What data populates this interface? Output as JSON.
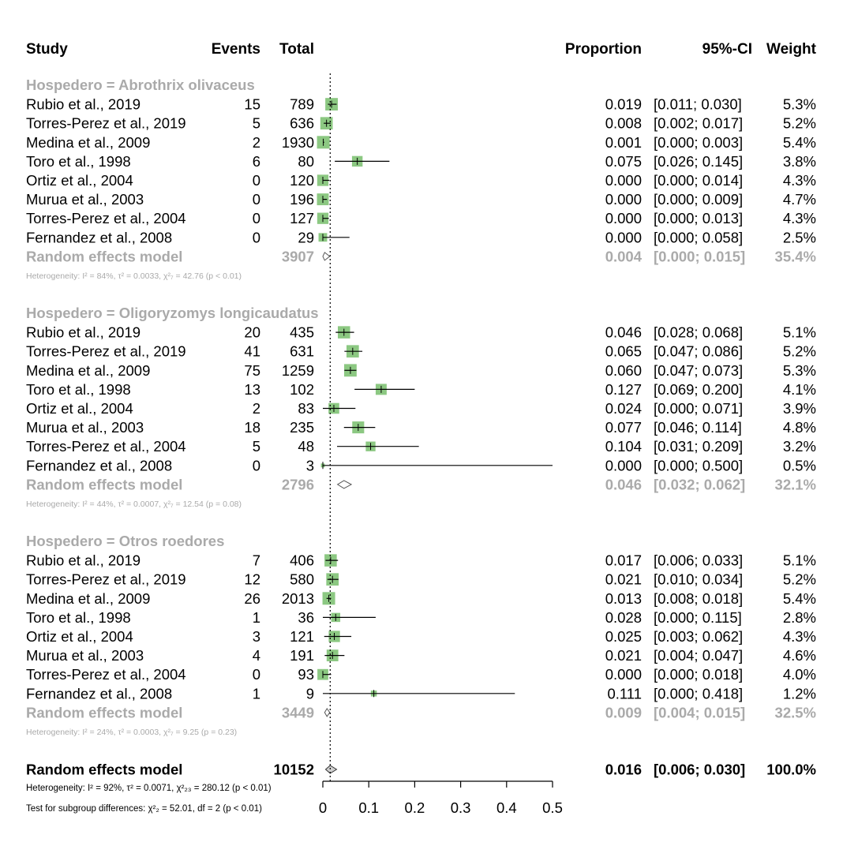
{
  "header": {
    "study": "Study",
    "events": "Events",
    "total": "Total",
    "proportion": "Proportion",
    "ci": "95%-CI",
    "weight": "Weight"
  },
  "chart_data": {
    "type": "forest",
    "xlim": [
      0,
      0.5
    ],
    "xticks": [
      "0",
      "0.1",
      "0.2",
      "0.3",
      "0.4",
      "0.5"
    ],
    "reference_line": 0.016,
    "colors": {
      "square": "#8cc882",
      "grey_text": "#aaaaaa",
      "diamond": "#888888"
    },
    "groups": [
      {
        "label": "Hospedero = Abrothrix olivaceus",
        "studies": [
          {
            "study": "Rubio et al., 2019",
            "events": "15",
            "total": "789",
            "est": 0.019,
            "lo": 0.011,
            "hi": 0.03,
            "prop": "0.019",
            "ci": "[0.011; 0.030]",
            "weight": "5.3%",
            "w": 5.3
          },
          {
            "study": "Torres-Perez et al., 2019",
            "events": "5",
            "total": "636",
            "est": 0.008,
            "lo": 0.002,
            "hi": 0.017,
            "prop": "0.008",
            "ci": "[0.002; 0.017]",
            "weight": "5.2%",
            "w": 5.2
          },
          {
            "study": "Medina et al., 2009",
            "events": "2",
            "total": "1930",
            "est": 0.001,
            "lo": 0.0,
            "hi": 0.003,
            "prop": "0.001",
            "ci": "[0.000; 0.003]",
            "weight": "5.4%",
            "w": 5.4
          },
          {
            "study": "Toro et al., 1998",
            "events": "6",
            "total": "80",
            "est": 0.075,
            "lo": 0.026,
            "hi": 0.145,
            "prop": "0.075",
            "ci": "[0.026; 0.145]",
            "weight": "3.8%",
            "w": 3.8
          },
          {
            "study": "Ortiz et al., 2004",
            "events": "0",
            "total": "120",
            "est": 0.0,
            "lo": 0.0,
            "hi": 0.014,
            "prop": "0.000",
            "ci": "[0.000; 0.014]",
            "weight": "4.3%",
            "w": 4.3
          },
          {
            "study": "Murua et al., 2003",
            "events": "0",
            "total": "196",
            "est": 0.0,
            "lo": 0.0,
            "hi": 0.009,
            "prop": "0.000",
            "ci": "[0.000; 0.009]",
            "weight": "4.7%",
            "w": 4.7
          },
          {
            "study": "Torres-Perez et al., 2004",
            "events": "0",
            "total": "127",
            "est": 0.0,
            "lo": 0.0,
            "hi": 0.013,
            "prop": "0.000",
            "ci": "[0.000; 0.013]",
            "weight": "4.3%",
            "w": 4.3
          },
          {
            "study": "Fernandez et al., 2008",
            "events": "0",
            "total": "29",
            "est": 0.0,
            "lo": 0.0,
            "hi": 0.058,
            "prop": "0.000",
            "ci": "[0.000; 0.058]",
            "weight": "2.5%",
            "w": 2.5
          }
        ],
        "pooled": {
          "label": "Random effects model",
          "total": "3907",
          "est": 0.004,
          "lo": 0.0,
          "hi": 0.015,
          "prop": "0.004",
          "ci": "[0.000; 0.015]",
          "weight": "35.4%"
        },
        "heterogeneity": "Heterogeneity: I² = 84%, τ² = 0.0033, χ²₇ = 42.76 (p < 0.01)"
      },
      {
        "label": "Hospedero = Oligoryzomys longicaudatus",
        "studies": [
          {
            "study": "Rubio et al., 2019",
            "events": "20",
            "total": "435",
            "est": 0.046,
            "lo": 0.028,
            "hi": 0.068,
            "prop": "0.046",
            "ci": "[0.028; 0.068]",
            "weight": "5.1%",
            "w": 5.1
          },
          {
            "study": "Torres-Perez et al., 2019",
            "events": "41",
            "total": "631",
            "est": 0.065,
            "lo": 0.047,
            "hi": 0.086,
            "prop": "0.065",
            "ci": "[0.047; 0.086]",
            "weight": "5.2%",
            "w": 5.2
          },
          {
            "study": "Medina et al., 2009",
            "events": "75",
            "total": "1259",
            "est": 0.06,
            "lo": 0.047,
            "hi": 0.073,
            "prop": "0.060",
            "ci": "[0.047; 0.073]",
            "weight": "5.3%",
            "w": 5.3
          },
          {
            "study": "Toro et al., 1998",
            "events": "13",
            "total": "102",
            "est": 0.127,
            "lo": 0.069,
            "hi": 0.2,
            "prop": "0.127",
            "ci": "[0.069; 0.200]",
            "weight": "4.1%",
            "w": 4.1
          },
          {
            "study": "Ortiz et al., 2004",
            "events": "2",
            "total": "83",
            "est": 0.024,
            "lo": 0.0,
            "hi": 0.071,
            "prop": "0.024",
            "ci": "[0.000; 0.071]",
            "weight": "3.9%",
            "w": 3.9
          },
          {
            "study": "Murua et al., 2003",
            "events": "18",
            "total": "235",
            "est": 0.077,
            "lo": 0.046,
            "hi": 0.114,
            "prop": "0.077",
            "ci": "[0.046; 0.114]",
            "weight": "4.8%",
            "w": 4.8
          },
          {
            "study": "Torres-Perez et al., 2004",
            "events": "5",
            "total": "48",
            "est": 0.104,
            "lo": 0.031,
            "hi": 0.209,
            "prop": "0.104",
            "ci": "[0.031; 0.209]",
            "weight": "3.2%",
            "w": 3.2
          },
          {
            "study": "Fernandez et al., 2008",
            "events": "0",
            "total": "3",
            "est": 0.0,
            "lo": 0.0,
            "hi": 0.5,
            "prop": "0.000",
            "ci": "[0.000; 0.500]",
            "weight": "0.5%",
            "w": 0.5
          }
        ],
        "pooled": {
          "label": "Random effects model",
          "total": "2796",
          "est": 0.046,
          "lo": 0.032,
          "hi": 0.062,
          "prop": "0.046",
          "ci": "[0.032; 0.062]",
          "weight": "32.1%"
        },
        "heterogeneity": "Heterogeneity: I² = 44%, τ² = 0.0007, χ²₇ = 12.54 (p = 0.08)"
      },
      {
        "label": "Hospedero = Otros roedores",
        "studies": [
          {
            "study": "Rubio et al., 2019",
            "events": "7",
            "total": "406",
            "est": 0.017,
            "lo": 0.006,
            "hi": 0.033,
            "prop": "0.017",
            "ci": "[0.006; 0.033]",
            "weight": "5.1%",
            "w": 5.1
          },
          {
            "study": "Torres-Perez et al., 2019",
            "events": "12",
            "total": "580",
            "est": 0.021,
            "lo": 0.01,
            "hi": 0.034,
            "prop": "0.021",
            "ci": "[0.010; 0.034]",
            "weight": "5.2%",
            "w": 5.2
          },
          {
            "study": "Medina et al., 2009",
            "events": "26",
            "total": "2013",
            "est": 0.013,
            "lo": 0.008,
            "hi": 0.018,
            "prop": "0.013",
            "ci": "[0.008; 0.018]",
            "weight": "5.4%",
            "w": 5.4
          },
          {
            "study": "Toro et al., 1998",
            "events": "1",
            "total": "36",
            "est": 0.028,
            "lo": 0.0,
            "hi": 0.115,
            "prop": "0.028",
            "ci": "[0.000; 0.115]",
            "weight": "2.8%",
            "w": 2.8
          },
          {
            "study": "Ortiz et al., 2004",
            "events": "3",
            "total": "121",
            "est": 0.025,
            "lo": 0.003,
            "hi": 0.062,
            "prop": "0.025",
            "ci": "[0.003; 0.062]",
            "weight": "4.3%",
            "w": 4.3
          },
          {
            "study": "Murua et al., 2003",
            "events": "4",
            "total": "191",
            "est": 0.021,
            "lo": 0.004,
            "hi": 0.047,
            "prop": "0.021",
            "ci": "[0.004; 0.047]",
            "weight": "4.6%",
            "w": 4.6
          },
          {
            "study": "Torres-Perez et al., 2004",
            "events": "0",
            "total": "93",
            "est": 0.0,
            "lo": 0.0,
            "hi": 0.018,
            "prop": "0.000",
            "ci": "[0.000; 0.018]",
            "weight": "4.0%",
            "w": 4.0
          },
          {
            "study": "Fernandez et al., 2008",
            "events": "1",
            "total": "9",
            "est": 0.111,
            "lo": 0.0,
            "hi": 0.418,
            "prop": "0.111",
            "ci": "[0.000; 0.418]",
            "weight": "1.2%",
            "w": 1.2
          }
        ],
        "pooled": {
          "label": "Random effects model",
          "total": "3449",
          "est": 0.009,
          "lo": 0.004,
          "hi": 0.015,
          "prop": "0.009",
          "ci": "[0.004; 0.015]",
          "weight": "32.5%"
        },
        "heterogeneity": "Heterogeneity: I² = 24%, τ² = 0.0003, χ²₇ = 9.25 (p = 0.23)"
      }
    ],
    "overall": {
      "label": "Random effects model",
      "total": "10152",
      "est": 0.016,
      "lo": 0.006,
      "hi": 0.03,
      "prop": "0.016",
      "ci": "[0.006; 0.030]",
      "weight": "100.0%",
      "heterogeneity": "Heterogeneity: I² = 92%, τ² = 0.0071, χ²₂₃ = 280.12 (p < 0.01)",
      "subgroup_test": "Test for subgroup differences: χ²₂ = 52.01, df = 2 (p < 0.01)"
    }
  }
}
